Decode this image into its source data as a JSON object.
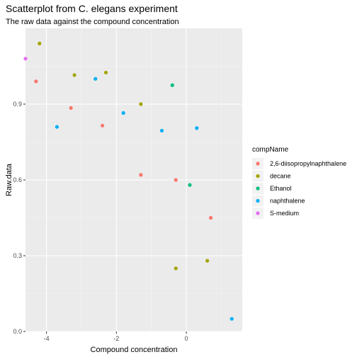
{
  "chart_data": {
    "type": "scatter",
    "title": "Scatterplot from C. elegans experiment",
    "subtitle": "The raw data against the compound concentration",
    "xlabel": "Compound concentration",
    "ylabel": "Raw.data",
    "xlim": [
      -4.6,
      1.6
    ],
    "ylim": [
      0.0,
      1.2
    ],
    "x_ticks": [
      -4,
      -2,
      0
    ],
    "y_ticks": [
      0.0,
      0.3,
      0.6,
      0.9
    ],
    "x_tick_labels": [
      "-4",
      "-2",
      "0"
    ],
    "y_tick_labels": [
      "0.0",
      "0.3",
      "0.6",
      "0.9"
    ],
    "grid": true,
    "legend": {
      "title": "compName",
      "position": "right"
    },
    "series": [
      {
        "name": "2,6-diisopropylnaphthalene",
        "color": "#F8766D",
        "x": [
          -4.3,
          -3.3,
          -2.4,
          -1.3,
          -0.3,
          0.7
        ],
        "y": [
          0.99,
          0.885,
          0.815,
          0.62,
          0.6,
          0.45
        ]
      },
      {
        "name": "decane",
        "color": "#A3A500",
        "x": [
          -4.2,
          -3.2,
          -2.3,
          -1.3,
          -0.3,
          0.6
        ],
        "y": [
          1.14,
          1.015,
          1.025,
          0.9,
          0.25,
          0.28
        ]
      },
      {
        "name": "Ethanol",
        "color": "#00BF7D",
        "x": [
          -0.4,
          0.1
        ],
        "y": [
          0.975,
          0.58
        ]
      },
      {
        "name": "naphthalene",
        "color": "#00B0F6",
        "x": [
          -3.7,
          -2.6,
          -1.8,
          -0.7,
          0.3,
          1.3
        ],
        "y": [
          0.81,
          1.0,
          0.865,
          0.795,
          0.805,
          0.05
        ]
      },
      {
        "name": "S-medium",
        "color": "#E76BF3",
        "x": [
          -4.6
        ],
        "y": [
          1.08
        ]
      }
    ]
  }
}
